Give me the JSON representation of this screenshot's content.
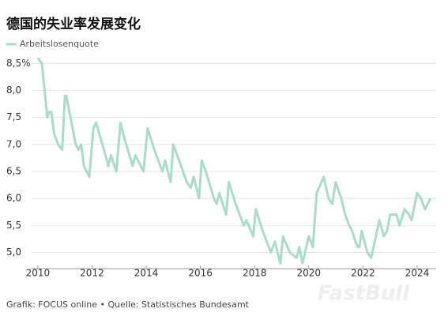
{
  "chart_data": {
    "type": "line",
    "title": "德国的失业率发展变化",
    "source": "Grafik: FOCUS online • Quelle: Statistisches Bundesamt",
    "watermark": "FastBull",
    "x": [
      2010.0,
      2010.15,
      2010.35,
      2010.42,
      2010.5,
      2010.6,
      2010.75,
      2010.9,
      2011.0,
      2011.05,
      2011.4,
      2011.5,
      2011.6,
      2011.7,
      2011.9,
      2012.05,
      2012.15,
      2012.5,
      2012.6,
      2012.7,
      2012.9,
      2013.05,
      2013.2,
      2013.5,
      2013.6,
      2013.9,
      2014.05,
      2014.3,
      2014.6,
      2014.7,
      2014.9,
      2015.0,
      2015.5,
      2015.65,
      2015.75,
      2015.95,
      2016.05,
      2016.2,
      2016.5,
      2016.6,
      2016.7,
      2016.95,
      2017.05,
      2017.3,
      2017.6,
      2017.7,
      2017.95,
      2018.05,
      2018.3,
      2018.6,
      2018.75,
      2018.95,
      2019.05,
      2019.3,
      2019.55,
      2019.65,
      2019.77,
      2020.0,
      2020.15,
      2020.29,
      2020.47,
      2020.55,
      2020.73,
      2020.87,
      2020.99,
      2021.2,
      2021.34,
      2021.49,
      2021.6,
      2021.72,
      2021.81,
      2021.87,
      2021.95,
      2022.16,
      2022.3,
      2022.48,
      2022.6,
      2022.77,
      2022.89,
      2023.0,
      2023.24,
      2023.35,
      2023.53,
      2023.7,
      2023.79,
      2024.0,
      2024.14,
      2024.29,
      2024.49
    ],
    "series": [
      {
        "name": "Arbeitslosenquote",
        "color": "#a9dcca",
        "values": [
          8.6,
          8.5,
          7.5,
          7.6,
          7.6,
          7.2,
          7.0,
          6.9,
          7.9,
          7.9,
          7.0,
          6.9,
          7.0,
          6.6,
          6.4,
          7.3,
          7.4,
          6.8,
          6.6,
          6.8,
          6.5,
          7.4,
          7.1,
          6.6,
          6.8,
          6.5,
          7.3,
          6.9,
          6.5,
          6.7,
          6.3,
          7.0,
          6.3,
          6.2,
          6.4,
          6.0,
          6.7,
          6.5,
          6.0,
          5.9,
          6.1,
          5.7,
          6.3,
          5.9,
          5.5,
          5.6,
          5.3,
          5.8,
          5.4,
          5.0,
          5.2,
          4.8,
          5.3,
          5.0,
          4.9,
          5.1,
          4.8,
          5.3,
          5.1,
          6.1,
          6.3,
          6.4,
          6.0,
          5.9,
          6.3,
          6.0,
          5.7,
          5.5,
          5.4,
          5.2,
          5.1,
          5.1,
          5.4,
          5.0,
          4.9,
          5.3,
          5.6,
          5.3,
          5.4,
          5.7,
          5.7,
          5.5,
          5.8,
          5.7,
          5.6,
          6.1,
          6.0,
          5.8,
          6.0
        ]
      }
    ],
    "xlim": [
      2009.8,
      2024.7
    ],
    "ylim": [
      4.7,
      8.65
    ],
    "xticks": [
      2010,
      2012,
      2014,
      2016,
      2018,
      2020,
      2022,
      2024
    ],
    "yticks": [
      {
        "value": 5.0,
        "label": "5,0"
      },
      {
        "value": 5.5,
        "label": "5,5"
      },
      {
        "value": 6.0,
        "label": "6,0"
      },
      {
        "value": 6.5,
        "label": "6,5"
      },
      {
        "value": 7.0,
        "label": "7,0"
      },
      {
        "value": 7.5,
        "label": "7,5"
      },
      {
        "value": 8.0,
        "label": "8,0"
      },
      {
        "value": 8.5,
        "label": "8,5%"
      }
    ],
    "grid": true,
    "legend": "top-left"
  }
}
